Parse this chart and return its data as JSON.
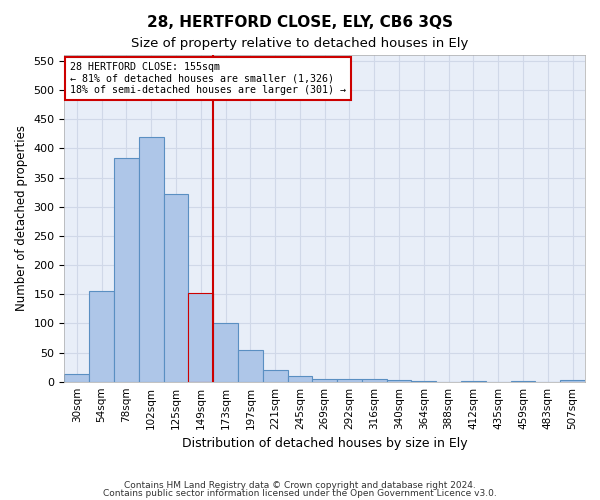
{
  "title1": "28, HERTFORD CLOSE, ELY, CB6 3QS",
  "title2": "Size of property relative to detached houses in Ely",
  "xlabel": "Distribution of detached houses by size in Ely",
  "ylabel": "Number of detached properties",
  "footnote1": "Contains HM Land Registry data © Crown copyright and database right 2024.",
  "footnote2": "Contains public sector information licensed under the Open Government Licence v3.0.",
  "annotation_line1": "28 HERTFORD CLOSE: 155sqm",
  "annotation_line2": "← 81% of detached houses are smaller (1,326)",
  "annotation_line3": "18% of semi-detached houses are larger (301) →",
  "bar_labels": [
    "30sqm",
    "54sqm",
    "78sqm",
    "102sqm",
    "125sqm",
    "149sqm",
    "173sqm",
    "197sqm",
    "221sqm",
    "245sqm",
    "269sqm",
    "292sqm",
    "316sqm",
    "340sqm",
    "364sqm",
    "388sqm",
    "412sqm",
    "435sqm",
    "459sqm",
    "483sqm",
    "507sqm"
  ],
  "bar_values": [
    13,
    155,
    383,
    420,
    322,
    152,
    100,
    55,
    20,
    10,
    5,
    5,
    5,
    3,
    2,
    0,
    2,
    0,
    2,
    0,
    3
  ],
  "bar_color": "#aec6e8",
  "bar_edge_color": "#5a8fc2",
  "highlight_bar_index": 5,
  "highlight_bar_color": "#aec6e8",
  "highlight_bar_edge_color": "#cc0000",
  "vline_x": 5,
  "vline_color": "#cc0000",
  "ylim": [
    0,
    560
  ],
  "yticks": [
    0,
    50,
    100,
    150,
    200,
    250,
    300,
    350,
    400,
    450,
    500,
    550
  ],
  "grid_color": "#d0d8e8",
  "background_color": "#e8eef8",
  "box_color": "#cc0000"
}
